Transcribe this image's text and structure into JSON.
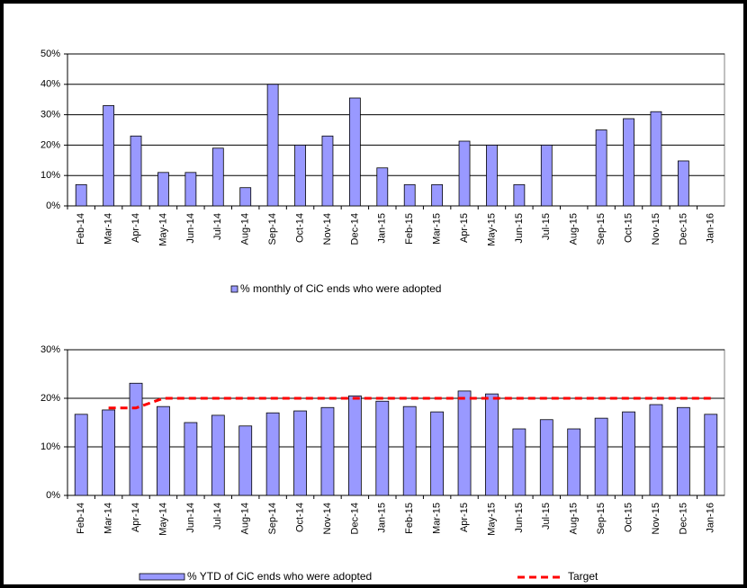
{
  "chart_data": [
    {
      "type": "bar",
      "categories": [
        "Feb-14",
        "Mar-14",
        "Apr-14",
        "May-14",
        "Jun-14",
        "Jul-14",
        "Aug-14",
        "Sep-14",
        "Oct-14",
        "Nov-14",
        "Dec-14",
        "Jan-15",
        "Feb-15",
        "Mar-15",
        "Apr-15",
        "May-15",
        "Jun-15",
        "Jul-15",
        "Aug-15",
        "Sep-15",
        "Oct-15",
        "Nov-15",
        "Dec-15",
        "Jan-16"
      ],
      "series": [
        {
          "name": "% monthly of CiC ends who were adopted",
          "type": "bar",
          "color": "#9999ff",
          "values": [
            7,
            33,
            23,
            11,
            11,
            19,
            6,
            40,
            20,
            23,
            35.5,
            12.5,
            7,
            7,
            21.3,
            20,
            7,
            20,
            0,
            25,
            28.7,
            31,
            14.8,
            0
          ]
        }
      ],
      "ylim": [
        0,
        50
      ],
      "yticks": [
        {
          "value": 0,
          "label": "0%"
        },
        {
          "value": 10,
          "label": "10%"
        },
        {
          "value": 20,
          "label": "20%"
        },
        {
          "value": 30,
          "label": "30%"
        },
        {
          "value": 40,
          "label": "40%"
        },
        {
          "value": 50,
          "label": "50%"
        }
      ],
      "grid": true,
      "legend": "bottom"
    },
    {
      "type": "bar",
      "categories": [
        "Feb-14",
        "Mar-14",
        "Apr-14",
        "May-14",
        "Jun-14",
        "Jul-14",
        "Aug-14",
        "Sep-14",
        "Oct-14",
        "Nov-14",
        "Dec-14",
        "Jan-15",
        "Feb-15",
        "Mar-15",
        "Apr-15",
        "May-15",
        "Jun-15",
        "Jul-15",
        "Aug-15",
        "Sep-15",
        "Oct-15",
        "Nov-15",
        "Dec-15",
        "Jan-16"
      ],
      "series": [
        {
          "name": "% YTD of CiC ends who were adopted",
          "type": "bar",
          "color": "#9999ff",
          "values": [
            16.7,
            17.6,
            23.1,
            18.3,
            15,
            16.5,
            14.3,
            17,
            17.4,
            18.1,
            20.5,
            19.4,
            18.3,
            17.2,
            21.5,
            20.9,
            13.7,
            15.6,
            13.7,
            15.9,
            17.2,
            18.7,
            18.1,
            16.7
          ]
        },
        {
          "name": "Target",
          "type": "line",
          "color": "#ff0000",
          "values": [
            null,
            18,
            18,
            20,
            20,
            20,
            20,
            20,
            20,
            20,
            20,
            20,
            20,
            20,
            20,
            20,
            20,
            20,
            20,
            20,
            20,
            20,
            20,
            20
          ]
        }
      ],
      "ylim": [
        0,
        30
      ],
      "yticks": [
        {
          "value": 0,
          "label": "0%"
        },
        {
          "value": 10,
          "label": "10%"
        },
        {
          "value": 20,
          "label": "20%"
        },
        {
          "value": 30,
          "label": "30%"
        }
      ],
      "grid": true,
      "legend": "bottom"
    }
  ]
}
